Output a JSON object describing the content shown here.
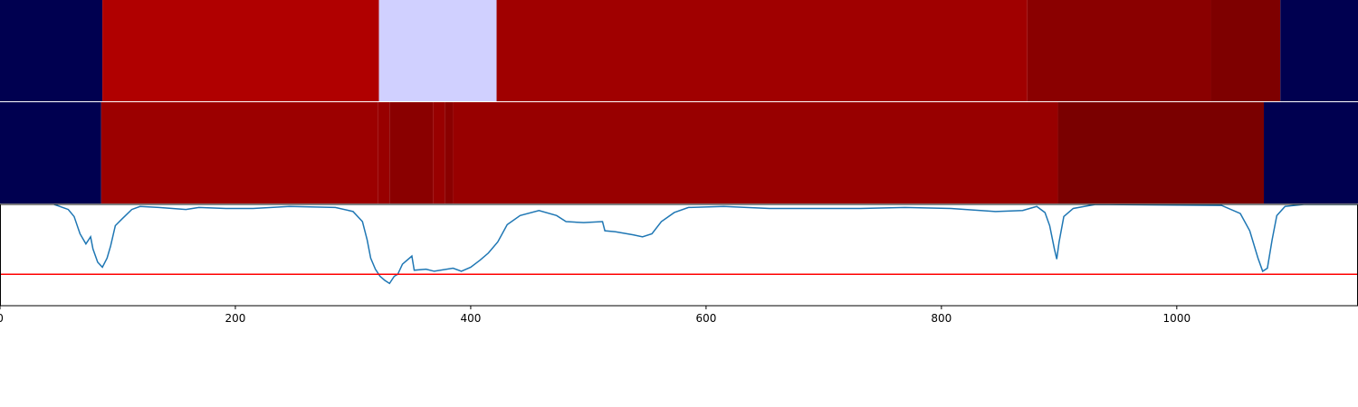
{
  "chart_data": [
    {
      "type": "heatmap",
      "xlim": [
        0,
        1154
      ],
      "rows": [
        {
          "segments": [
            {
              "start": 0,
              "end": 87,
              "color": "#000050"
            },
            {
              "start": 87,
              "end": 322,
              "color": "#b00000"
            },
            {
              "start": 322,
              "end": 422,
              "color": "#d0d0ff"
            },
            {
              "start": 422,
              "end": 873,
              "color": "#a00000"
            },
            {
              "start": 873,
              "end": 1029,
              "color": "#8a0000"
            },
            {
              "start": 1029,
              "end": 1088,
              "color": "#7e0000"
            },
            {
              "start": 1088,
              "end": 1154,
              "color": "#000050"
            }
          ]
        },
        {
          "segments": [
            {
              "start": 0,
              "end": 86,
              "color": "#000050"
            },
            {
              "start": 86,
              "end": 321,
              "color": "#9c0000"
            },
            {
              "start": 321,
              "end": 331,
              "color": "#980000"
            },
            {
              "start": 331,
              "end": 368,
              "color": "#8a0000"
            },
            {
              "start": 368,
              "end": 378,
              "color": "#980000"
            },
            {
              "start": 378,
              "end": 385,
              "color": "#8a0000"
            },
            {
              "start": 385,
              "end": 899,
              "color": "#980000"
            },
            {
              "start": 899,
              "end": 1074,
              "color": "#7a0000"
            },
            {
              "start": 1074,
              "end": 1154,
              "color": "#000050"
            }
          ]
        }
      ]
    },
    {
      "type": "line",
      "xlim": [
        0,
        1154
      ],
      "ylim": [
        0,
        1
      ],
      "xticks": [
        0,
        200,
        400,
        600,
        800,
        1000
      ],
      "x": [
        46,
        58,
        63,
        68,
        73,
        77,
        79,
        83,
        87,
        91,
        94,
        98,
        104,
        112,
        119,
        135,
        158,
        169,
        192,
        215,
        246,
        285,
        300,
        308,
        312,
        315,
        319,
        323,
        327,
        331,
        335,
        338,
        342,
        350,
        352,
        362,
        369,
        385,
        392,
        400,
        408,
        415,
        423,
        431,
        442,
        458,
        473,
        481,
        496,
        512,
        514,
        523,
        538,
        546,
        554,
        562,
        573,
        585,
        615,
        654,
        692,
        731,
        769,
        808,
        846,
        869,
        881,
        888,
        892,
        896,
        898,
        900,
        904,
        912,
        931,
        1038,
        1054,
        1062,
        1069,
        1073,
        1077,
        1081,
        1085,
        1092,
        1108,
        1154
      ],
      "series": [
        {
          "color": "#1f77b4",
          "values": [
            1.0,
            0.95,
            0.88,
            0.71,
            0.61,
            0.68,
            0.56,
            0.43,
            0.38,
            0.47,
            0.59,
            0.79,
            0.86,
            0.95,
            0.98,
            0.97,
            0.95,
            0.97,
            0.96,
            0.96,
            0.98,
            0.97,
            0.93,
            0.83,
            0.65,
            0.47,
            0.36,
            0.29,
            0.25,
            0.22,
            0.29,
            0.31,
            0.41,
            0.49,
            0.35,
            0.36,
            0.34,
            0.37,
            0.34,
            0.38,
            0.45,
            0.52,
            0.63,
            0.8,
            0.89,
            0.94,
            0.89,
            0.83,
            0.82,
            0.83,
            0.74,
            0.73,
            0.7,
            0.68,
            0.71,
            0.83,
            0.92,
            0.97,
            0.98,
            0.96,
            0.96,
            0.96,
            0.97,
            0.96,
            0.93,
            0.94,
            0.98,
            0.92,
            0.79,
            0.56,
            0.46,
            0.63,
            0.88,
            0.96,
            1.0,
            0.99,
            0.91,
            0.74,
            0.47,
            0.34,
            0.37,
            0.65,
            0.89,
            0.98,
            1.0,
            1.0
          ]
        }
      ],
      "hlines": [
        {
          "value": 0.31,
          "color": "#ff0000"
        }
      ]
    }
  ]
}
